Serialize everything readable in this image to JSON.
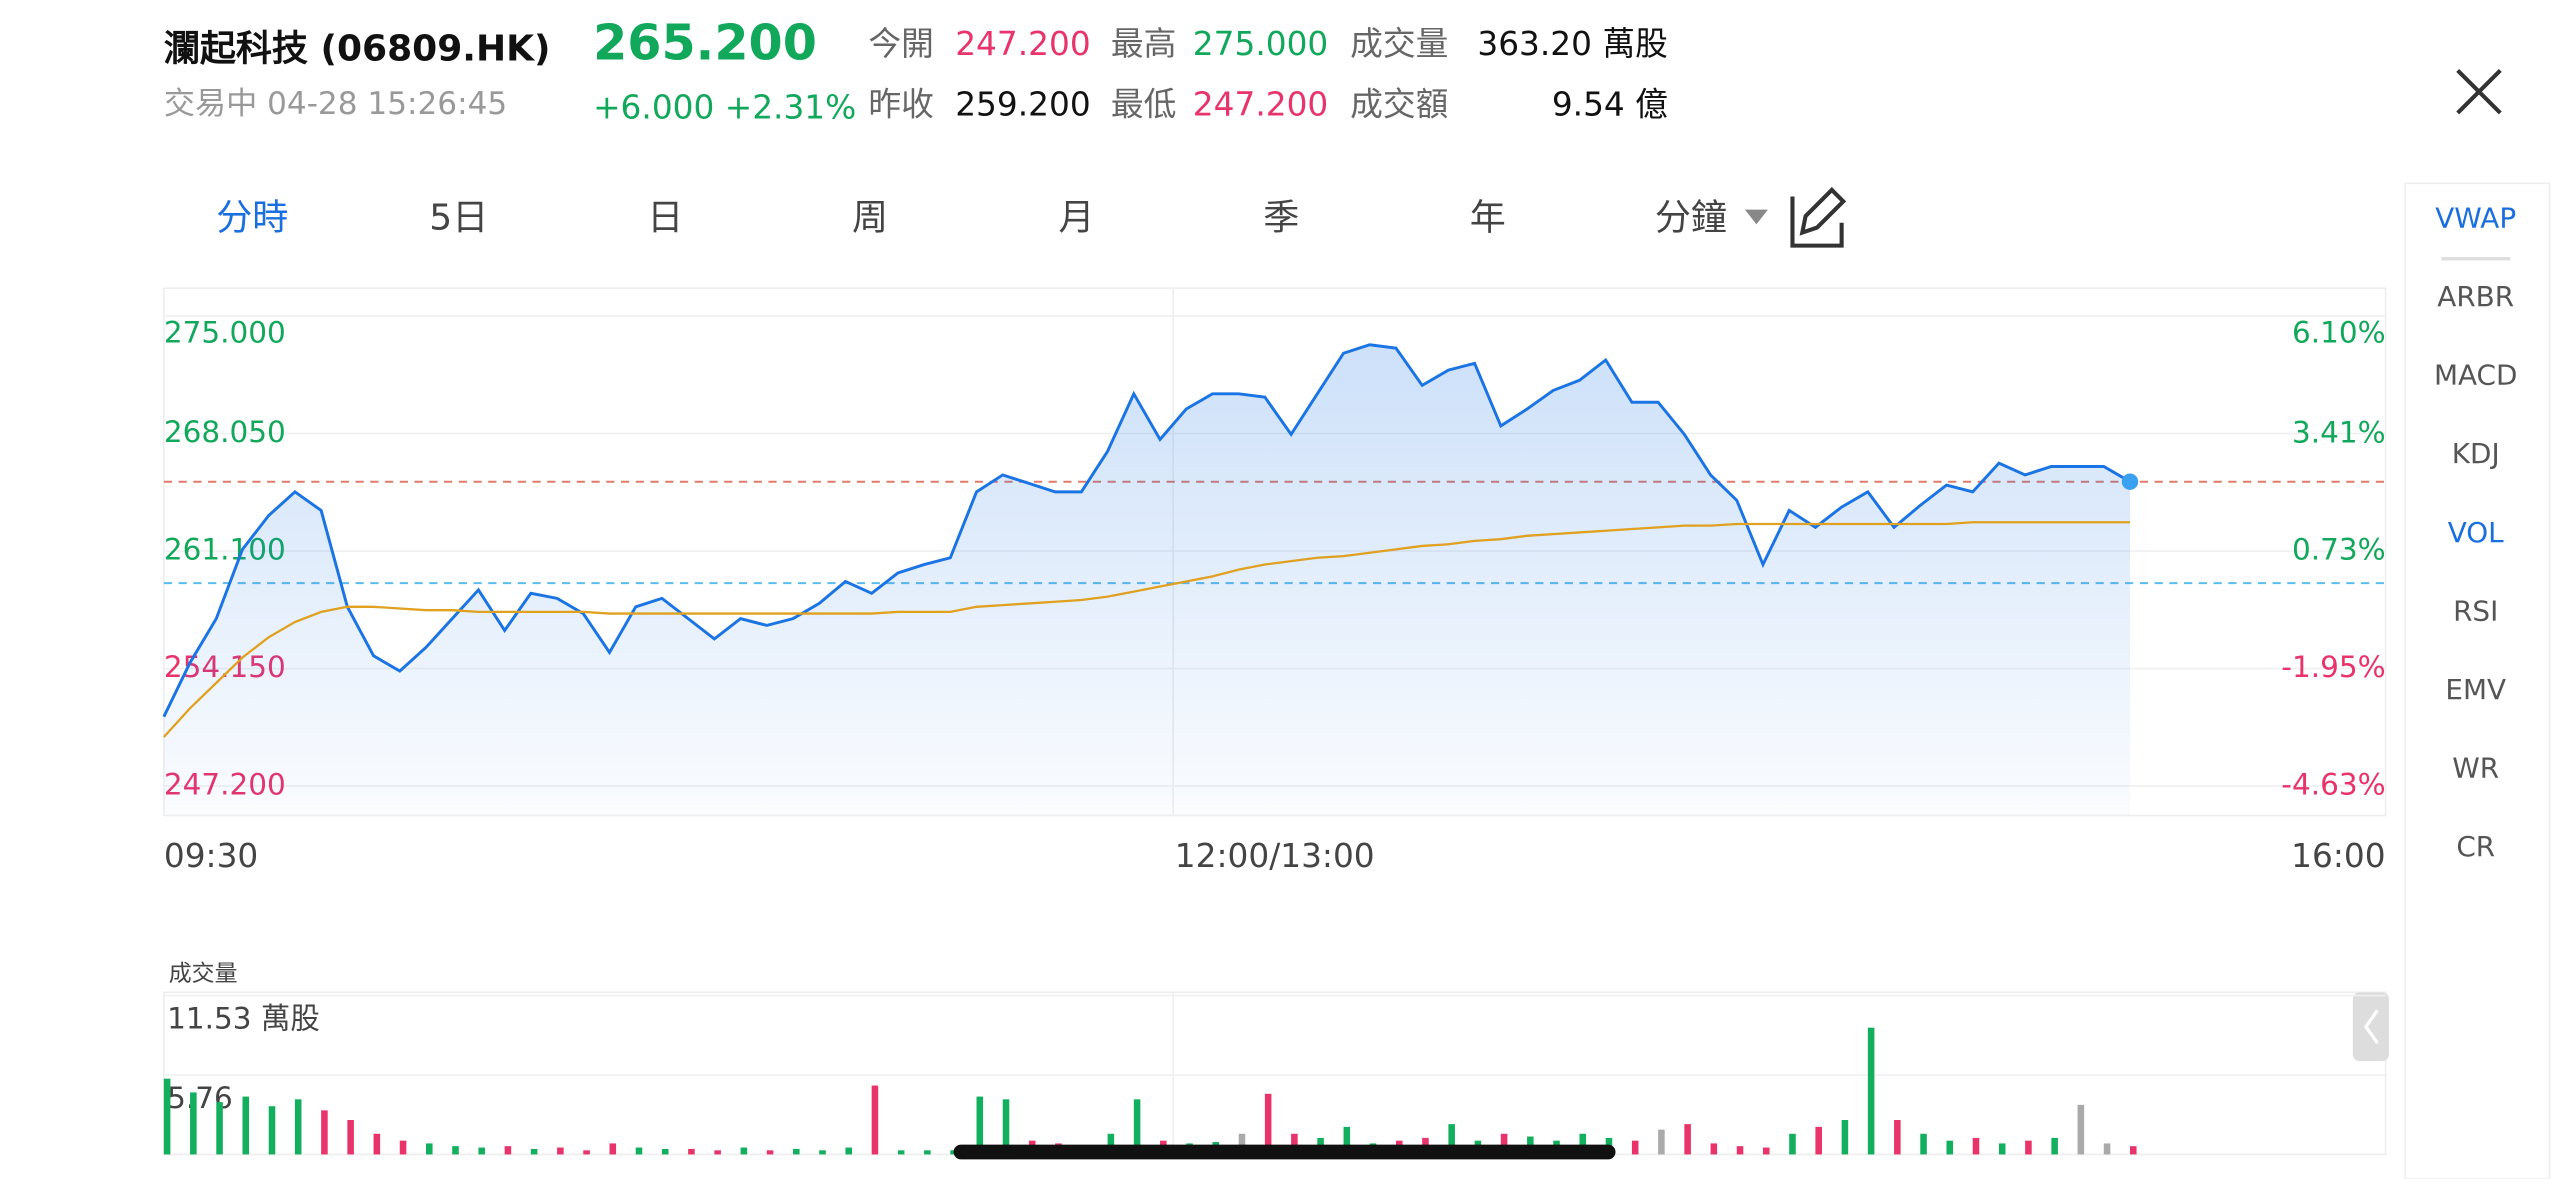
{
  "header": {
    "name": "瀾起科技 (06809.HK)",
    "price": "265.200",
    "status": "交易中 04-28 15:26:45",
    "change": "+6.000 +2.31%",
    "stats": [
      {
        "label": "今開",
        "value": "247.200",
        "color": "#e8336b"
      },
      {
        "label": "最高",
        "value": "275.000",
        "color": "#12a85b"
      },
      {
        "label": "成交量",
        "value": "363.20 萬股",
        "color": "#111111"
      },
      {
        "label": "昨收",
        "value": "259.200",
        "color": "#111111"
      },
      {
        "label": "最低",
        "value": "247.200",
        "color": "#e8336b"
      },
      {
        "label": "成交額",
        "value": "9.54 億",
        "color": "#111111"
      }
    ]
  },
  "tabs": [
    "分時",
    "5日",
    "日",
    "周",
    "月",
    "季",
    "年",
    "分鐘"
  ],
  "active_tab": 0,
  "indicators": [
    {
      "label": "VWAP",
      "active": true
    },
    {
      "label": "ARBR",
      "active": false
    },
    {
      "label": "MACD",
      "active": false
    },
    {
      "label": "KDJ",
      "active": false
    },
    {
      "label": "VOL",
      "active": true
    },
    {
      "label": "RSI",
      "active": false
    },
    {
      "label": "EMV",
      "active": false
    },
    {
      "label": "WR",
      "active": false
    },
    {
      "label": "CR",
      "active": false
    }
  ],
  "chart_data": [
    {
      "type": "line",
      "x_labels": [
        "09:30",
        "12:00/13:00",
        "16:00"
      ],
      "series": [
        {
          "color": "#1b74e4",
          "values": [
            251.3,
            254.5,
            257.1,
            261.2,
            263.2,
            264.6,
            263.5,
            257.8,
            254.9,
            254.0,
            255.4,
            257.1,
            258.8,
            256.4,
            258.6,
            258.3,
            257.4,
            255.1,
            257.8,
            258.3,
            257.1,
            255.9,
            257.1,
            256.7,
            257.1,
            258.0,
            259.3,
            258.6,
            259.8,
            260.3,
            260.7,
            264.6,
            265.6,
            265.1,
            264.6,
            264.6,
            267.0,
            270.4,
            267.7,
            269.5,
            270.4,
            270.4,
            270.2,
            268.0,
            270.4,
            272.8,
            273.3,
            273.1,
            270.9,
            271.8,
            272.2,
            268.5,
            269.5,
            270.6,
            271.2,
            272.4,
            269.9,
            269.9,
            268.0,
            265.6,
            264.1,
            260.3,
            263.5,
            262.5,
            263.7,
            264.6,
            262.5,
            263.8,
            265.0,
            264.6,
            266.3,
            265.6,
            266.1,
            266.1,
            266.1,
            265.2
          ]
        },
        {
          "color": "#e0a020",
          "values": [
            250.1,
            251.8,
            253.3,
            254.8,
            256.0,
            256.9,
            257.5,
            257.8,
            257.8,
            257.7,
            257.6,
            257.6,
            257.5,
            257.5,
            257.5,
            257.5,
            257.5,
            257.4,
            257.4,
            257.4,
            257.4,
            257.4,
            257.4,
            257.4,
            257.4,
            257.4,
            257.4,
            257.4,
            257.5,
            257.5,
            257.5,
            257.8,
            257.9,
            258.0,
            258.1,
            258.2,
            258.4,
            258.7,
            259.0,
            259.3,
            259.6,
            260.0,
            260.3,
            260.5,
            260.7,
            260.8,
            261.0,
            261.2,
            261.4,
            261.5,
            261.7,
            261.8,
            262.0,
            262.1,
            262.2,
            262.3,
            262.4,
            262.5,
            262.6,
            262.6,
            262.7,
            262.7,
            262.7,
            262.7,
            262.7,
            262.7,
            262.7,
            262.7,
            262.7,
            262.8,
            262.8,
            262.8,
            262.8,
            262.8,
            262.8,
            262.8
          ]
        }
      ],
      "ylim": [
        247.2,
        275
      ],
      "yticks": [
        {
          "value": 275,
          "label": "275.000"
        },
        {
          "value": 268.05,
          "label": "268.050"
        },
        {
          "value": 261.1,
          "label": "261.100"
        },
        {
          "value": 254.15,
          "label": "254.150"
        },
        {
          "value": 247.2,
          "label": "247.200"
        }
      ],
      "y2lim": [
        -4.63,
        6.1
      ],
      "y2ticks": [
        {
          "value": 6.1,
          "label": "6.10%"
        },
        {
          "value": 3.41,
          "label": "3.41%"
        },
        {
          "value": 0.73,
          "label": "0.73%"
        },
        {
          "value": -1.95,
          "label": "-1.95%"
        },
        {
          "value": -4.63,
          "label": "-4.63%"
        }
      ],
      "reference_lines": [
        {
          "value": 259.2,
          "color": "#5bbcf0"
        },
        {
          "value": 265.2,
          "color": "#e07a6a"
        }
      ],
      "up_color": "#12a85b",
      "down_color": "#e8336b",
      "grid": true
    },
    {
      "type": "bar",
      "title": "成交量",
      "values": [
        5.5,
        4.5,
        3.8,
        4.2,
        3.5,
        4.0,
        3.2,
        2.5,
        1.5,
        1.0,
        0.8,
        0.6,
        0.5,
        0.6,
        0.4,
        0.5,
        0.3,
        0.8,
        0.5,
        0.4,
        0.4,
        0.3,
        0.5,
        0.3,
        0.4,
        0.3,
        0.5,
        5.0,
        0.3,
        0.3,
        0.3,
        4.2,
        4.0,
        1.0,
        0.8,
        0.5,
        1.5,
        4.0,
        1.0,
        0.8,
        0.9,
        1.5,
        4.4,
        1.5,
        1.2,
        2.0,
        0.8,
        1.0,
        1.2,
        2.2,
        1.0,
        1.5,
        1.3,
        1.0,
        1.5,
        1.2,
        1.0,
        1.8,
        2.2,
        0.8,
        0.6,
        0.5,
        1.5,
        2.0,
        2.5,
        9.2,
        2.5,
        1.5,
        1.0,
        1.2,
        0.8,
        1.0,
        1.2,
        3.6,
        0.8,
        0.6
      ],
      "ylim": [
        0,
        11.53
      ],
      "yticks": [
        {
          "value": 11.53,
          "label": "11.53 萬股"
        },
        {
          "value": 5.76,
          "label": "5.76"
        }
      ],
      "up_color": "#12b05e",
      "down_color": "#e8336b",
      "flat_color": "#aaaaaa",
      "grid": true
    }
  ]
}
